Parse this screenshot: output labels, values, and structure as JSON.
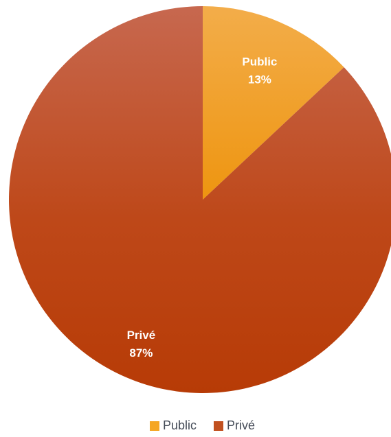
{
  "chart_data": {
    "type": "pie",
    "title": "",
    "categories": [
      "Public",
      "Privé"
    ],
    "values": [
      13,
      87
    ],
    "value_labels": [
      "13%",
      "87%"
    ],
    "colors": [
      "#f5a623",
      "#c1501f"
    ],
    "legend": {
      "position": "bottom",
      "entries": [
        "Public",
        "Privé"
      ]
    },
    "start_angle_deg": 0,
    "direction": "clockwise"
  }
}
